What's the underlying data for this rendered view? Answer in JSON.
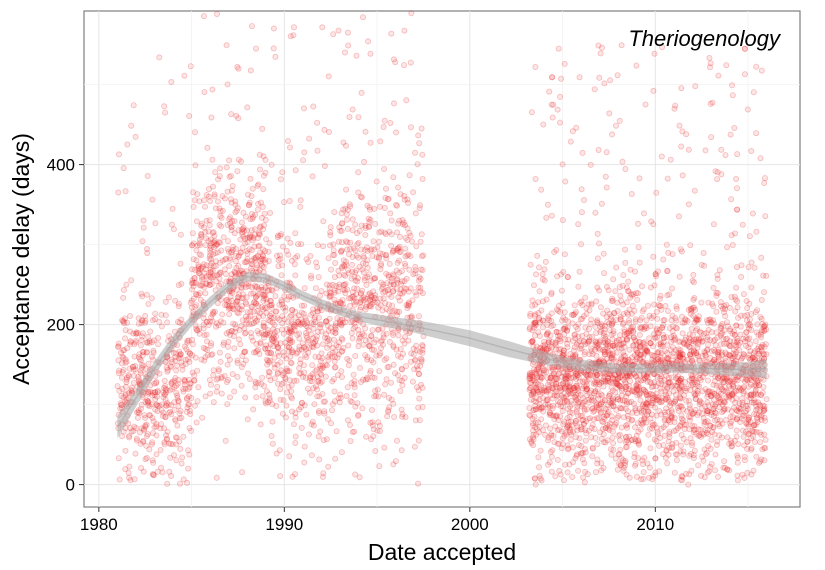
{
  "chart_data": {
    "type": "scatter",
    "title": "",
    "annotation": "Theriogenology",
    "xlabel": "Date accepted",
    "ylabel": "Acceptance delay (days)",
    "xlim": [
      1979.2,
      2017.8
    ],
    "ylim": [
      -28,
      592
    ],
    "x_ticks": [
      1980,
      1990,
      2000,
      2010
    ],
    "y_ticks": [
      0,
      200,
      400
    ],
    "grid": true,
    "legend": "none",
    "point_color": "#e8272b",
    "smooth_color": "#a6a6a6",
    "smooth_line": {
      "x": [
        1981,
        1982,
        1983,
        1984,
        1985,
        1986,
        1987,
        1988,
        1989,
        1990,
        1991,
        1992,
        1993,
        1994,
        1995,
        1996,
        1997,
        1998,
        2000,
        2002,
        2003,
        2004,
        2005,
        2006,
        2008,
        2010,
        2011,
        2012,
        2013,
        2014,
        2015,
        2016
      ],
      "y": [
        72,
        108,
        145,
        178,
        205,
        228,
        248,
        260,
        258,
        248,
        236,
        226,
        217,
        210,
        206,
        202,
        198,
        193,
        183,
        170,
        164,
        158,
        153,
        149,
        145,
        145,
        146,
        145,
        145,
        144,
        144,
        145
      ]
    },
    "smooth_band_halfwidth": [
      14,
      11,
      9,
      8,
      7,
      7,
      6,
      6,
      6,
      6,
      6,
      6,
      6,
      6,
      7,
      7,
      8,
      9,
      10,
      10,
      9,
      8,
      7,
      7,
      6,
      6,
      6,
      6,
      7,
      8,
      9,
      12
    ],
    "point_density": {
      "bins_per_year": 4,
      "clusters": [
        {
          "x_range": [
            1981,
            1985
          ],
          "center": 120,
          "spread": 75,
          "count": 480
        },
        {
          "x_range": [
            1985,
            1989
          ],
          "center": 245,
          "spread": 90,
          "count": 650
        },
        {
          "x_range": [
            1989,
            1993
          ],
          "center": 180,
          "spread": 85,
          "count": 520
        },
        {
          "x_range": [
            1993,
            1997.5
          ],
          "center": 220,
          "spread": 110,
          "count": 620
        },
        {
          "x_range": [
            2003.2,
            2016
          ],
          "center": 130,
          "spread": 75,
          "count": 2600
        }
      ]
    }
  }
}
